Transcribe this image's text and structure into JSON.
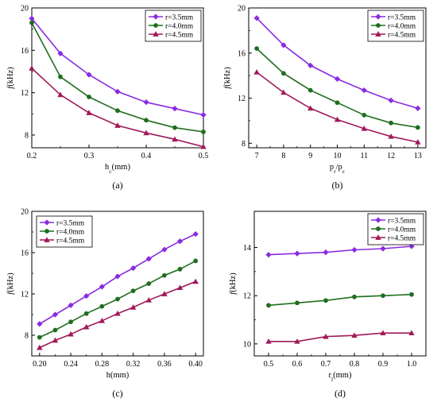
{
  "chart_data": [
    {
      "type": "line",
      "panel_label": "(a)",
      "xlabel": "h_c(mm)",
      "xlabel_main": "h",
      "xlabel_sub": "c",
      "xlabel_tail": "(mm)",
      "ylabel": "f(kHz)",
      "ylabel_italic": "f",
      "ylabel_tail": "(kHz)",
      "xlim": [
        0.2,
        0.5
      ],
      "ylim": [
        6.8,
        20
      ],
      "xticks": [
        0.2,
        0.3,
        0.4,
        0.5
      ],
      "xtick_labels": [
        "0.2",
        "0.3",
        "0.4",
        "0.5"
      ],
      "yticks": [
        8,
        12,
        16,
        20
      ],
      "ytick_labels": [
        "8",
        "12",
        "16",
        "20"
      ],
      "x": [
        0.2,
        0.25,
        0.3,
        0.35,
        0.4,
        0.45,
        0.5
      ],
      "legend_position": "top-right",
      "series": [
        {
          "name": "r=3.5mm",
          "color": "#8a2be2",
          "marker": "diamond",
          "values": [
            19.0,
            15.7,
            13.7,
            12.1,
            11.1,
            10.5,
            9.9
          ]
        },
        {
          "name": "r=4.0mm",
          "color": "#1e6e1e",
          "marker": "circle",
          "values": [
            18.6,
            13.5,
            11.6,
            10.3,
            9.4,
            8.7,
            8.3
          ]
        },
        {
          "name": "r=4.5mm",
          "color": "#a0195a",
          "marker": "triangle",
          "values": [
            14.3,
            11.8,
            10.1,
            8.9,
            8.2,
            7.6,
            6.9
          ]
        }
      ]
    },
    {
      "type": "line",
      "panel_label": "(b)",
      "xlabel": "p_r/p_c",
      "xlabel_main": "p",
      "xlabel_sub": "r",
      "xlabel_tail": "/p",
      "xlabel_sub2": "c",
      "ylabel": "f(kHz)",
      "ylabel_italic": "f",
      "ylabel_tail": "(kHz)",
      "xlim": [
        6.7,
        13.3
      ],
      "ylim": [
        7.6,
        20
      ],
      "xticks": [
        7,
        8,
        9,
        10,
        11,
        12,
        13
      ],
      "xtick_labels": [
        "7",
        "8",
        "9",
        "10",
        "11",
        "12",
        "13"
      ],
      "yticks": [
        8,
        12,
        16,
        20
      ],
      "ytick_labels": [
        "8",
        "12",
        "16",
        "20"
      ],
      "x": [
        7,
        8,
        9,
        10,
        11,
        12,
        13
      ],
      "legend_position": "top-right",
      "series": [
        {
          "name": "r=3.5mm",
          "color": "#8a2be2",
          "marker": "diamond",
          "values": [
            19.1,
            16.7,
            14.9,
            13.7,
            12.7,
            11.8,
            11.1
          ]
        },
        {
          "name": "r=4.0mm",
          "color": "#1e6e1e",
          "marker": "circle",
          "values": [
            16.4,
            14.2,
            12.7,
            11.6,
            10.5,
            9.8,
            9.4
          ]
        },
        {
          "name": "r=4.5mm",
          "color": "#a0195a",
          "marker": "triangle",
          "values": [
            14.3,
            12.5,
            11.1,
            10.1,
            9.3,
            8.6,
            8.1
          ]
        }
      ]
    },
    {
      "type": "line",
      "panel_label": "(c)",
      "xlabel": "h(mm)",
      "xlabel_main": "h",
      "xlabel_tail": "(mm)",
      "ylabel": "f(kHz)",
      "ylabel_italic": "f",
      "ylabel_tail": "(kHz)",
      "xlim": [
        0.19,
        0.41
      ],
      "ylim": [
        6,
        20
      ],
      "xticks": [
        0.2,
        0.24,
        0.28,
        0.32,
        0.36,
        0.4
      ],
      "xtick_labels": [
        "0.20",
        "0.24",
        "0.28",
        "0.32",
        "0.36",
        "0.40"
      ],
      "yticks": [
        8,
        12,
        16,
        20
      ],
      "ytick_labels": [
        "8",
        "12",
        "16",
        "20"
      ],
      "x": [
        0.2,
        0.22,
        0.24,
        0.26,
        0.28,
        0.3,
        0.32,
        0.34,
        0.36,
        0.38,
        0.4
      ],
      "legend_position": "top-left",
      "series": [
        {
          "name": "r=3.5mm",
          "color": "#8a2be2",
          "marker": "diamond",
          "values": [
            9.1,
            10.0,
            10.9,
            11.8,
            12.7,
            13.7,
            14.5,
            15.4,
            16.3,
            17.1,
            17.8
          ]
        },
        {
          "name": "r=4.0mm",
          "color": "#1e6e1e",
          "marker": "circle",
          "values": [
            7.8,
            8.5,
            9.3,
            10.1,
            10.8,
            11.5,
            12.3,
            13.0,
            13.8,
            14.4,
            15.2
          ]
        },
        {
          "name": "r=4.5mm",
          "color": "#a0195a",
          "marker": "triangle",
          "values": [
            6.8,
            7.5,
            8.1,
            8.8,
            9.4,
            10.1,
            10.7,
            11.4,
            12.0,
            12.6,
            13.2
          ]
        }
      ]
    },
    {
      "type": "line",
      "panel_label": "(d)",
      "xlabel": "r_l(mm)",
      "xlabel_main": "r",
      "xlabel_sub": "l",
      "xlabel_tail": "(mm)",
      "ylabel": "f(kHz)",
      "ylabel_italic": "f",
      "ylabel_tail": "(kHz)",
      "xlim": [
        0.45,
        1.05
      ],
      "ylim": [
        9.5,
        15.5
      ],
      "xticks": [
        0.5,
        0.6,
        0.7,
        0.8,
        0.9,
        1.0
      ],
      "xtick_labels": [
        "0.5",
        "0.6",
        "0.7",
        "0.8",
        "0.9",
        "1.0"
      ],
      "yticks": [
        10,
        12,
        14
      ],
      "ytick_labels": [
        "10",
        "12",
        "14"
      ],
      "x": [
        0.5,
        0.6,
        0.7,
        0.8,
        0.9,
        1.0
      ],
      "legend_position": "top-right",
      "series": [
        {
          "name": "r=3.5mm",
          "color": "#8a2be2",
          "marker": "diamond",
          "values": [
            13.7,
            13.75,
            13.8,
            13.9,
            13.95,
            14.05
          ]
        },
        {
          "name": "r=4.0mm",
          "color": "#1e6e1e",
          "marker": "circle",
          "values": [
            11.6,
            11.7,
            11.8,
            11.95,
            12.0,
            12.05
          ]
        },
        {
          "name": "r=4.5mm",
          "color": "#a0195a",
          "marker": "triangle",
          "values": [
            10.1,
            10.1,
            10.3,
            10.35,
            10.45,
            10.45
          ]
        }
      ]
    }
  ]
}
